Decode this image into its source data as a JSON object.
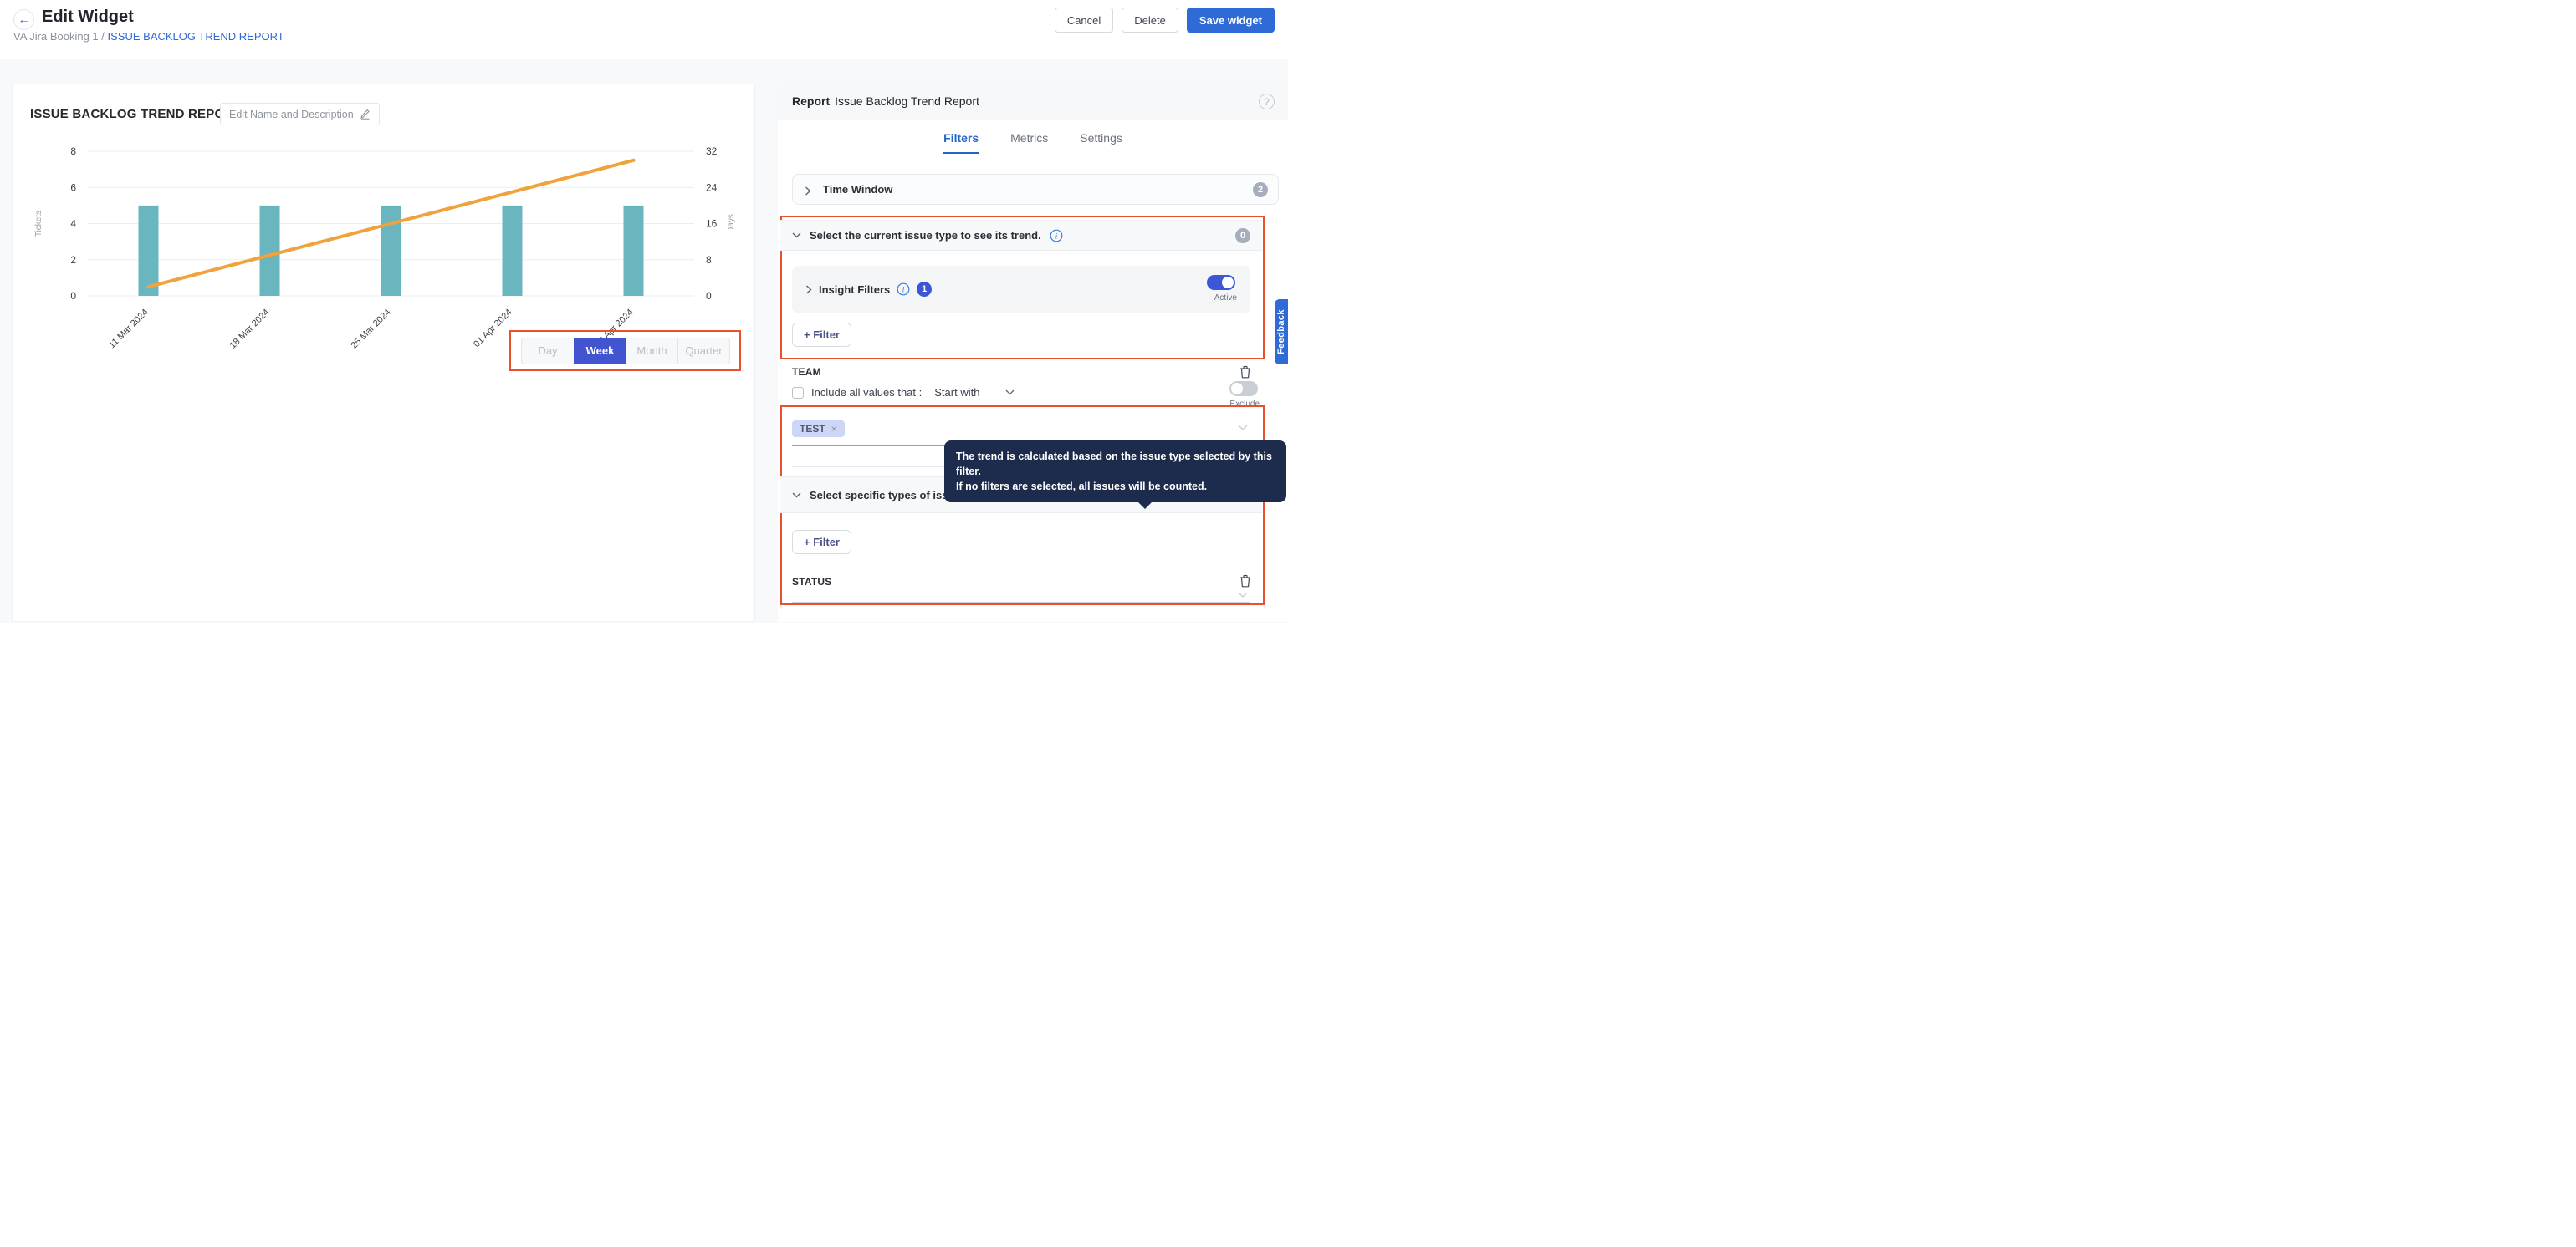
{
  "header": {
    "title": "Edit Widget",
    "breadcrumb_parent": "VA Jira Booking 1",
    "breadcrumb_separator": "/",
    "breadcrumb_current": "ISSUE BACKLOG TREND REPORT",
    "cancel_label": "Cancel",
    "delete_label": "Delete",
    "save_label": "Save widget"
  },
  "widget": {
    "title": "ISSUE BACKLOG TREND REPORT",
    "edit_name_label": "Edit Name and Description",
    "granularity_options": [
      "Day",
      "Week",
      "Month",
      "Quarter"
    ],
    "granularity_selected": "Week"
  },
  "chart_data": {
    "type": "bar",
    "subtype": "combo-bar-line",
    "categories": [
      "11 Mar 2024",
      "18 Mar 2024",
      "25 Mar 2024",
      "01 Apr 2024",
      "08 Apr 2024"
    ],
    "series": [
      {
        "name": "Tickets",
        "type": "bar",
        "axis": "left",
        "values": [
          5,
          5,
          5,
          5,
          5
        ],
        "color": "#6ab6bf"
      },
      {
        "name": "Days",
        "type": "line",
        "axis": "right",
        "values": [
          2,
          9,
          16,
          23,
          30
        ],
        "color": "#f0a33c"
      }
    ],
    "left_axis": {
      "label": "Tickets",
      "ticks": [
        0,
        2,
        4,
        6,
        8
      ],
      "range": [
        0,
        8
      ]
    },
    "right_axis": {
      "label": "Days",
      "ticks": [
        0,
        8,
        16,
        24,
        32
      ],
      "range": [
        0,
        32
      ]
    },
    "grid": true,
    "legend": false
  },
  "report_panel": {
    "label": "Report",
    "name": "Issue Backlog Trend Report",
    "help_icon": "?",
    "tabs": [
      "Filters",
      "Metrics",
      "Settings"
    ],
    "active_tab": "Filters",
    "time_window": {
      "label": "Time Window",
      "badge": "2"
    },
    "current_issue_type": {
      "label": "Select the current issue type to see its trend.",
      "badge": "0"
    },
    "insight_filters": {
      "label": "Insight Filters",
      "badge": "1",
      "toggle_label": "Active"
    },
    "add_filter_label": "+ Filter",
    "team_filter": {
      "field": "TEAM",
      "include_label": "Include all values that :",
      "operator": "Start with",
      "exclude_label": "Exclude",
      "selected_values": [
        "TEST"
      ],
      "remove_glyph": "×"
    },
    "specific_types": {
      "label": "Select specific types of issues you are interested in tracking the trend of",
      "badge": "0"
    },
    "status_filter": {
      "field": "STATUS"
    },
    "tooltip": {
      "line1": "The trend is calculated based on the issue type selected by this filter.",
      "line2": "If no filters are selected, all issues will be counted."
    }
  },
  "feedback_label": "Feedback",
  "colors": {
    "accent_blue": "#2e6bd6",
    "indigo_active": "#4254d0",
    "bar_teal": "#6ab6bf",
    "line_orange": "#f0a33c",
    "annotation_red": "#e8502e",
    "tooltip_navy": "#1d2b4c"
  }
}
